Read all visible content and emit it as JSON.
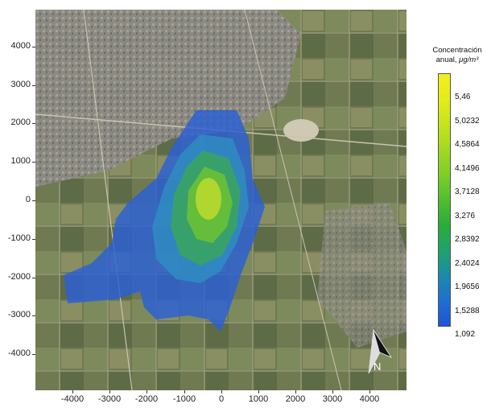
{
  "axes": {
    "y_ticks": [
      "4000",
      "3000",
      "2000",
      "1000",
      "0",
      "-1000",
      "-2000",
      "-3000",
      "-4000"
    ],
    "x_ticks": [
      "-4000",
      "-3000",
      "-2000",
      "-1000",
      "0",
      "1000",
      "2000",
      "3000",
      "4000"
    ],
    "x_range": [
      -4900,
      4900
    ],
    "y_range": [
      -4800,
      5000
    ]
  },
  "legend": {
    "title_line1": "Concentración",
    "title_line2": "anual, ",
    "unit": "μg/m³",
    "levels": [
      "5,46",
      "5,0232",
      "4,5864",
      "4,1496",
      "3,7128",
      "3,276",
      "2,8392",
      "2,4024",
      "1,9656",
      "1,5288",
      "1,092"
    ],
    "colors": [
      "#f2ef1b",
      "#e4ec1c",
      "#c6e31d",
      "#a3d921",
      "#7ece28",
      "#4fbf2e",
      "#2aac3a",
      "#1fa36c",
      "#1b8ba9",
      "#1f6fd0",
      "#2153d8"
    ]
  },
  "north_arrow": {
    "label": "N"
  },
  "map": {
    "basemap": "satellite imagery",
    "plume_colors": {
      "outer": "#2a5fd6",
      "ring2": "#2f8ec0",
      "ring3": "#3aa65c",
      "ring4": "#6cc233",
      "core": "#b8d830"
    }
  }
}
